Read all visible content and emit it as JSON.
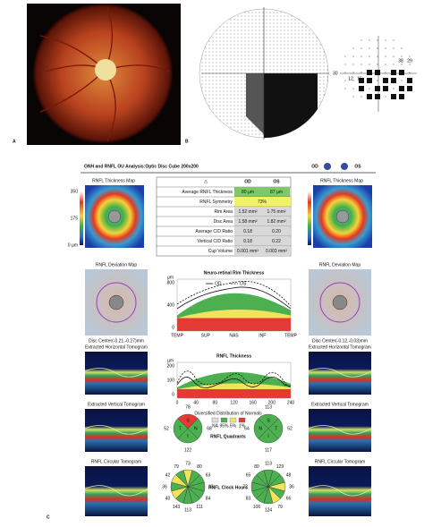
{
  "panels": {
    "a": "A",
    "b": "B",
    "c": "C"
  },
  "visual_field": {
    "axis_label": "30",
    "values": [
      "38",
      "29",
      "12",
      "15"
    ]
  },
  "report": {
    "title": "ONH and RNFL OU Analysis:Optic Disc Cube 200x200",
    "od": "OD",
    "os": "OS"
  },
  "thickness_map": {
    "title": "RNFL Thickness Map",
    "scale": [
      "350",
      "175",
      "0 µm"
    ]
  },
  "table": {
    "header": [
      "OD",
      "OS"
    ],
    "rows": [
      [
        "Average RNFL Thickness",
        "80 µm",
        "87 µm"
      ],
      [
        "RNFL Symmetry",
        "73%"
      ],
      [
        "Rim Area",
        "1.52 mm²",
        "1.75 mm²"
      ],
      [
        "Disc Area",
        "1.58 mm²",
        "1.82 mm²"
      ],
      [
        "Average C/D Ratio",
        "0.18",
        "0.20"
      ],
      [
        "Vertical C/D Ratio",
        "0.18",
        "0.22"
      ],
      [
        "Cup Volume",
        "0.001 mm³",
        "0.003 mm³"
      ]
    ]
  },
  "deviation_map": {
    "title": "RNFL Deviation Map",
    "od_center": "Disc Center(-0.21,-0.27)mm",
    "os_center": "Disc Center(-0.12,-0.03)mm"
  },
  "rim_chart": {
    "title": "Neuro-retinal Rim Thickness",
    "legend": [
      "OD",
      "OS"
    ],
    "unit": "µm",
    "yticks": [
      "800",
      "400",
      "0"
    ],
    "xticks": [
      "TEMP",
      "SUP",
      "NAS",
      "INF",
      "TEMP"
    ]
  },
  "thickness_chart": {
    "title": "RNFL Thickness",
    "unit": "µm",
    "yticks": [
      "200",
      "100",
      "0"
    ],
    "xticks": [
      "0",
      "40",
      "80",
      "120",
      "160",
      "200",
      "240"
    ]
  },
  "tomograms": {
    "horizontal": "Extracted Horizontal Tomogram",
    "vertical": "Extracted Vertical Tomogram",
    "circular": "RNFL Circular Tomogram"
  },
  "quadrants": {
    "title": "RNFL Quadrants",
    "legend_title": "Diversified Distribution of Normals",
    "legend": [
      "NA",
      "95%",
      "5%",
      "1%"
    ],
    "legend_colors": [
      "#dddddd",
      "#4caf50",
      "#f3e35a",
      "#e53935"
    ],
    "od": {
      "values": [
        78,
        68,
        122,
        52
      ],
      "letters": [
        "S",
        "N",
        "I",
        "T"
      ],
      "colors": [
        "#e53935",
        "#4caf50",
        "#4caf50",
        "#4caf50"
      ]
    },
    "os": {
      "values": [
        113,
        52,
        117,
        64
      ],
      "letters": [
        "S",
        "T",
        "I",
        "N"
      ],
      "colors": [
        "#4caf50",
        "#4caf50",
        "#4caf50",
        "#4caf50"
      ]
    }
  },
  "clock_hours": {
    "title": "RNFL Clock Hours",
    "od": {
      "values": [
        73,
        80,
        63,
        63,
        84,
        111,
        113,
        143,
        40,
        36,
        42,
        79
      ],
      "colors": [
        "#f3e35a",
        "#4caf50",
        "#4caf50",
        "#4caf50",
        "#4caf50",
        "#4caf50",
        "#4caf50",
        "#4caf50",
        "#f3e35a",
        "#4caf50",
        "#f3e35a",
        "#4caf50"
      ]
    },
    "os": {
      "values": [
        113,
        129,
        48,
        36,
        66,
        79,
        124,
        106,
        83,
        72,
        65,
        80
      ],
      "colors": [
        "#4caf50",
        "#4caf50",
        "#4caf50",
        "#f3e35a",
        "#4caf50",
        "#f3e35a",
        "#4caf50",
        "#4caf50",
        "#4caf50",
        "#4caf50",
        "#4caf50",
        "#4caf50"
      ]
    }
  }
}
